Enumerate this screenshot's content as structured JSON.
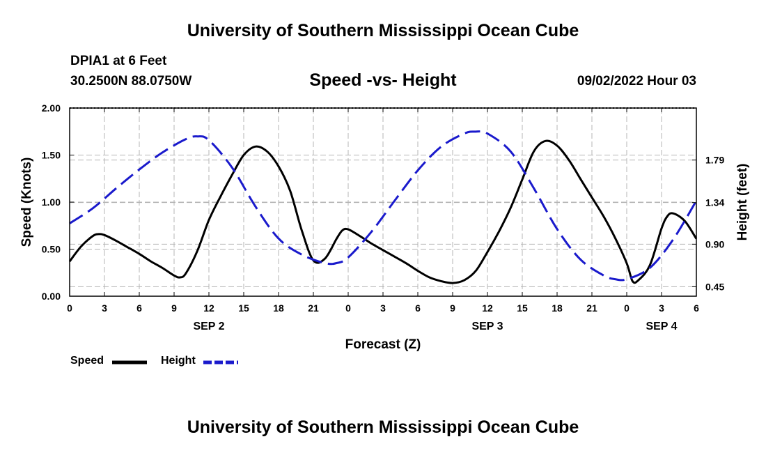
{
  "header": {
    "title": "University of Southern Mississippi Ocean Cube",
    "station": "DPIA1 at 6 Feet",
    "location": "30.2500N  88.0750W",
    "subtitle": "Speed -vs- Height",
    "datetime": "09/02/2022 Hour 03"
  },
  "footer": {
    "title": "University of Southern Mississippi Ocean Cube"
  },
  "legend": {
    "speed_label": "Speed",
    "height_label": "Height"
  },
  "colors": {
    "speed": "#000000",
    "height": "#1a1acc",
    "grid": "#b4b4b4"
  },
  "chart_data": {
    "type": "line",
    "xlabel": "Forecast (Z)",
    "ylabel": "Speed (Knots)",
    "y2label": "Height (feet)",
    "xlim": [
      0,
      54
    ],
    "ylim": [
      0,
      2.0
    ],
    "y2lim": [
      0.35,
      2.34
    ],
    "x_ticks": [
      0,
      3,
      6,
      9,
      12,
      15,
      18,
      21,
      24,
      27,
      30,
      33,
      36,
      39,
      42,
      45,
      48,
      51,
      54
    ],
    "x_tick_labels": [
      "0",
      "3",
      "6",
      "9",
      "12",
      "15",
      "18",
      "21",
      "0",
      "3",
      "6",
      "9",
      "12",
      "15",
      "18",
      "21",
      "0",
      "3",
      "6"
    ],
    "day_labels": [
      {
        "x": 12,
        "label": "SEP 2"
      },
      {
        "x": 36,
        "label": "SEP 3"
      },
      {
        "x": 51,
        "label": "SEP 4"
      }
    ],
    "y_ticks": [
      0,
      0.5,
      1.0,
      1.5,
      2.0
    ],
    "y_tick_labels": [
      "0.00",
      "0.50",
      "1.00",
      "1.50",
      "2.00"
    ],
    "y2_ticks": [
      0.45,
      0.9,
      1.34,
      1.79
    ],
    "y2_tick_labels": [
      "0.45",
      "0.90",
      "1.34",
      "1.79"
    ],
    "series": [
      {
        "name": "Speed",
        "axis": "left",
        "x": [
          0,
          1,
          2,
          2.5,
          3,
          4,
          5,
          6,
          7,
          8,
          9,
          9.5,
          10,
          11,
          12,
          13,
          14,
          15,
          16,
          17,
          18,
          19,
          20,
          21,
          22,
          23,
          23.5,
          24,
          25,
          26,
          27,
          28,
          29,
          30,
          31,
          32,
          33,
          34,
          35,
          36,
          37,
          38,
          39,
          40,
          41,
          42,
          43,
          44,
          45,
          46,
          47,
          48,
          48.5,
          49,
          50,
          51,
          51.5,
          52,
          53,
          54
        ],
        "values": [
          0.37,
          0.53,
          0.64,
          0.66,
          0.65,
          0.59,
          0.52,
          0.45,
          0.37,
          0.3,
          0.22,
          0.2,
          0.24,
          0.48,
          0.81,
          1.06,
          1.29,
          1.5,
          1.59,
          1.54,
          1.38,
          1.12,
          0.7,
          0.38,
          0.4,
          0.61,
          0.7,
          0.71,
          0.64,
          0.56,
          0.49,
          0.42,
          0.35,
          0.27,
          0.2,
          0.16,
          0.14,
          0.17,
          0.27,
          0.47,
          0.69,
          0.94,
          1.24,
          1.54,
          1.65,
          1.6,
          1.45,
          1.25,
          1.05,
          0.85,
          0.62,
          0.35,
          0.16,
          0.17,
          0.33,
          0.72,
          0.85,
          0.88,
          0.8,
          0.61
        ]
      },
      {
        "name": "Height",
        "axis": "right",
        "x": [
          0,
          2,
          4,
          6,
          8,
          10,
          11,
          12,
          14,
          16,
          18,
          20,
          22,
          23,
          24,
          26,
          28,
          30,
          32,
          34,
          35,
          36,
          38,
          40,
          42,
          44,
          46,
          47,
          48,
          50,
          52,
          54
        ],
        "values": [
          1.12,
          1.28,
          1.49,
          1.69,
          1.87,
          2.01,
          2.04,
          2.0,
          1.71,
          1.3,
          0.96,
          0.79,
          0.7,
          0.7,
          0.76,
          1.03,
          1.36,
          1.68,
          1.93,
          2.07,
          2.09,
          2.07,
          1.88,
          1.49,
          1.06,
          0.74,
          0.57,
          0.53,
          0.53,
          0.65,
          0.95,
          1.36
        ]
      }
    ]
  }
}
